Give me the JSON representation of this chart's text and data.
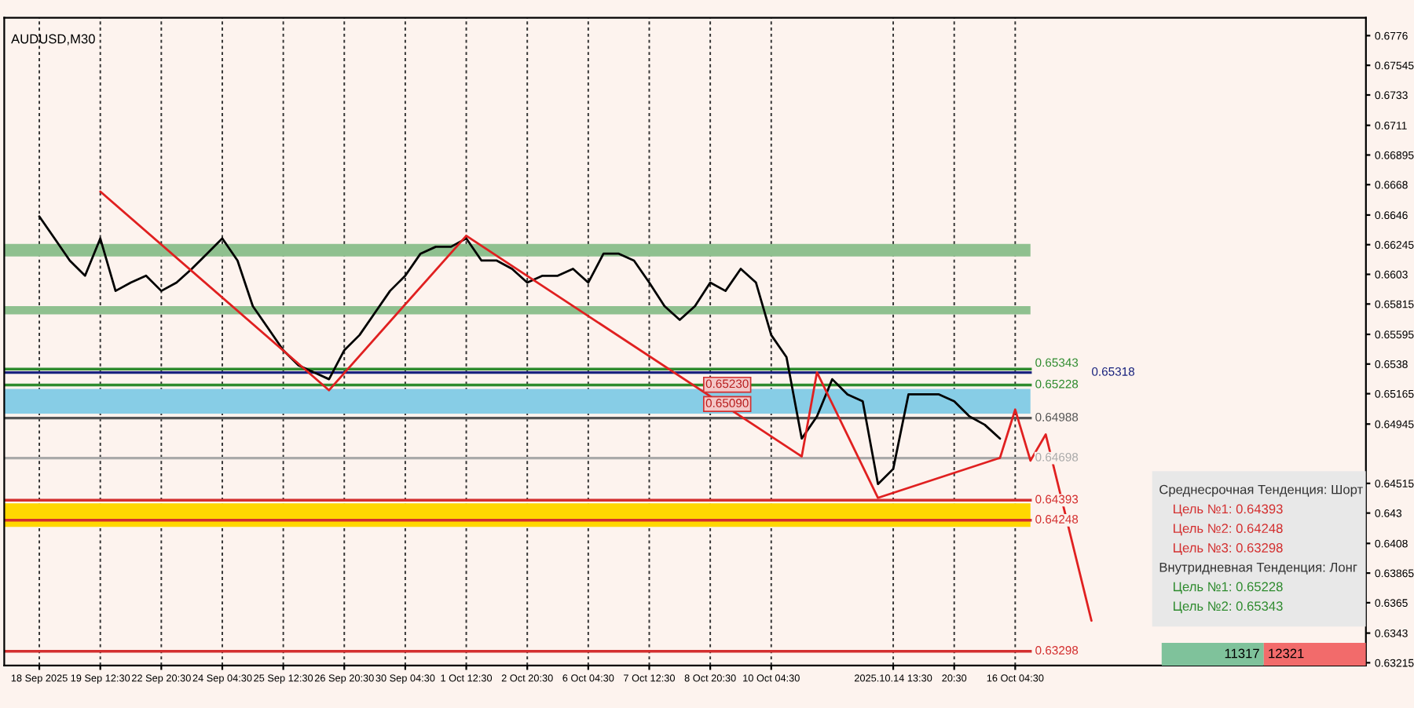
{
  "chart_data": {
    "type": "line",
    "title": "AUDUSD,M30",
    "categories": [
      "18 Sep 2025",
      null,
      null,
      null,
      "19 Sep 12:30",
      null,
      null,
      null,
      "22 Sep 20:30",
      null,
      null,
      null,
      "24 Sep 04:30",
      null,
      null,
      null,
      "25 Sep 12:30",
      null,
      null,
      null,
      "26 Sep 20:30",
      null,
      null,
      null,
      "30 Sep 04:30",
      null,
      null,
      null,
      "1 Oct 12:30",
      null,
      null,
      null,
      "2 Oct 20:30",
      null,
      null,
      null,
      "6 Oct 04:30",
      null,
      null,
      null,
      "7 Oct 12:30",
      null,
      null,
      null,
      "8 Oct 20:30",
      null,
      null,
      null,
      "10 Oct 04:30",
      null,
      null,
      null,
      null,
      null,
      null,
      null,
      "2025.10.14 13:30",
      null,
      null,
      null,
      "20:30",
      null,
      null,
      null,
      "16 Oct 04:30",
      null,
      null,
      null,
      null,
      null,
      null,
      null,
      null,
      null,
      null,
      null,
      null,
      null,
      null,
      null,
      null,
      null,
      null,
      null,
      null,
      null,
      null
    ],
    "ylim": [
      0.63195,
      0.6789
    ],
    "yticks": [
      0.63215,
      0.6343,
      0.6365,
      0.63865,
      0.6408,
      0.643,
      0.64515,
      0.64945,
      0.65165,
      0.6538,
      0.65595,
      0.65815,
      0.6603,
      0.66245,
      0.6646,
      0.6668,
      0.66895,
      0.6711,
      0.6733,
      0.67545,
      0.6776
    ],
    "grid": "x",
    "line_style": "solid",
    "marker": "none",
    "series": [
      {
        "color": "#000000",
        "values": [
          0.6645,
          0.6629,
          0.6613,
          0.6602,
          0.6629,
          0.6591,
          0.6597,
          0.6602,
          0.6591,
          0.6597,
          0.6607,
          0.6618,
          0.6629,
          0.6613,
          0.658,
          0.6564,
          0.6548,
          0.6537,
          0.6532,
          0.6527,
          0.6548,
          0.6559,
          0.6575,
          0.6591,
          0.6602,
          0.6618,
          0.6623,
          0.6623,
          0.6629,
          0.6613,
          0.6613,
          0.6607,
          0.6597,
          0.6602,
          0.6602,
          0.6607,
          0.6597,
          0.6618,
          0.6618,
          0.6613,
          0.6597,
          0.658,
          0.657,
          0.658,
          0.6597,
          0.6591,
          0.6607,
          0.6597,
          0.6559,
          0.6543,
          0.6484,
          0.65,
          0.6527,
          0.6516,
          0.6511,
          0.6451,
          0.6462,
          0.6516,
          0.6516,
          0.6516,
          0.6511,
          0.65,
          0.6494,
          0.6484,
          null,
          null,
          null,
          null,
          null,
          null,
          null,
          null,
          null,
          null,
          null,
          null,
          null,
          null,
          null,
          null,
          null,
          null,
          null,
          null,
          null,
          null,
          null
        ]
      },
      {
        "color": "#e02020",
        "values": [
          null,
          null,
          null,
          null,
          0.6663,
          null,
          null,
          null,
          null,
          null,
          null,
          null,
          null,
          null,
          null,
          null,
          null,
          null,
          null,
          0.6519,
          null,
          null,
          null,
          null,
          null,
          null,
          null,
          null,
          0.6631,
          null,
          null,
          null,
          null,
          null,
          null,
          null,
          null,
          null,
          null,
          null,
          null,
          null,
          null,
          null,
          null,
          null,
          null,
          null,
          null,
          null,
          0.6471,
          0.6532,
          null,
          null,
          null,
          0.6441,
          null,
          null,
          null,
          null,
          null,
          null,
          null,
          0.647,
          0.6505,
          0.6468,
          0.6487,
          null,
          null,
          0.6352,
          null,
          null,
          null,
          null,
          null,
          null,
          null,
          null,
          null,
          null,
          null,
          null,
          null,
          null,
          null,
          null,
          null
        ]
      }
    ],
    "ref_lines": [
      {
        "axis": "y",
        "value": 0.65343,
        "label": "0.65343",
        "color": "#2e8b2e"
      },
      {
        "axis": "y",
        "value": 0.65318,
        "label": "0.65318",
        "color": "#1a237e"
      },
      {
        "axis": "y",
        "value": 0.65228,
        "label": "0.65228",
        "color": "#2e8b2e"
      },
      {
        "axis": "y",
        "value": 0.64988,
        "label": "0.64988",
        "color": "#555555"
      },
      {
        "axis": "y",
        "value": 0.64393,
        "label": "0.64393",
        "color": "#d32f2f"
      },
      {
        "axis": "y",
        "value": 0.64248,
        "label": "0.64248",
        "color": "#d32f2f"
      },
      {
        "axis": "y",
        "value": 0.63298,
        "label": "0.63298",
        "color": "#d32f2f"
      },
      {
        "axis": "y",
        "value": 0.64698,
        "label": "0.64698",
        "color": "#aaaaaa"
      }
    ],
    "bands": [
      {
        "axis": "y",
        "from": 0.6502,
        "to": 0.652,
        "color": "#87cde6"
      },
      {
        "axis": "y",
        "from": 0.642,
        "to": 0.6437,
        "color": "#ffd700"
      },
      {
        "axis": "y",
        "from": 0.6616,
        "to": 0.6625,
        "color": "#8fc08f"
      },
      {
        "axis": "y",
        "from": 0.6574,
        "to": 0.658,
        "color": "#8fc08f"
      }
    ],
    "annotations": [
      {
        "text": "0.65230",
        "y": 0.6523
      },
      {
        "text": "0.65090",
        "y": 0.6509
      },
      "Среднесрочная Тенденция: Шорт",
      "Цель №1: 0.64393",
      "Цель №2: 0.64248",
      "Цель №3: 0.63298",
      "Внутридневная Тенденция: Лонг",
      "Цель №1: 0.65228",
      "Цель №2: 0.65343",
      "11317",
      "12321"
    ]
  }
}
